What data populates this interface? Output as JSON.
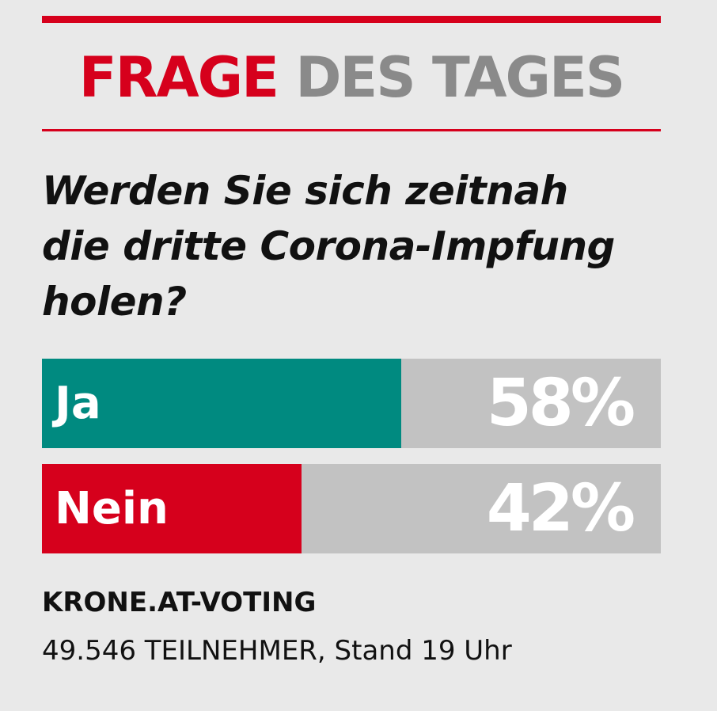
{
  "header": {
    "title_part1": "FRAGE",
    "title_part2": "DES TAGES"
  },
  "question": {
    "line1": "Werden Sie sich zeitnah",
    "line2": "die dritte Corona-Impfung",
    "line3": "holen?"
  },
  "chart_data": {
    "type": "bar",
    "title": "Werden Sie sich zeitnah die dritte Corona-Impfung holen?",
    "categories": [
      "Ja",
      "Nein"
    ],
    "values": [
      58,
      42
    ],
    "value_labels": [
      "58%",
      "42%"
    ],
    "colors": [
      "#008a80",
      "#d6001c"
    ],
    "track_color": "#c2c2c2",
    "ylim": [
      0,
      100
    ]
  },
  "footer": {
    "source": "KRONE.AT-VOTING",
    "participants": "49.546 TEILNEHMER, Stand 19 Uhr"
  },
  "colors": {
    "accent_red": "#d6001c",
    "title_gray": "#8a8a8a",
    "background": "#e9e9e9"
  }
}
